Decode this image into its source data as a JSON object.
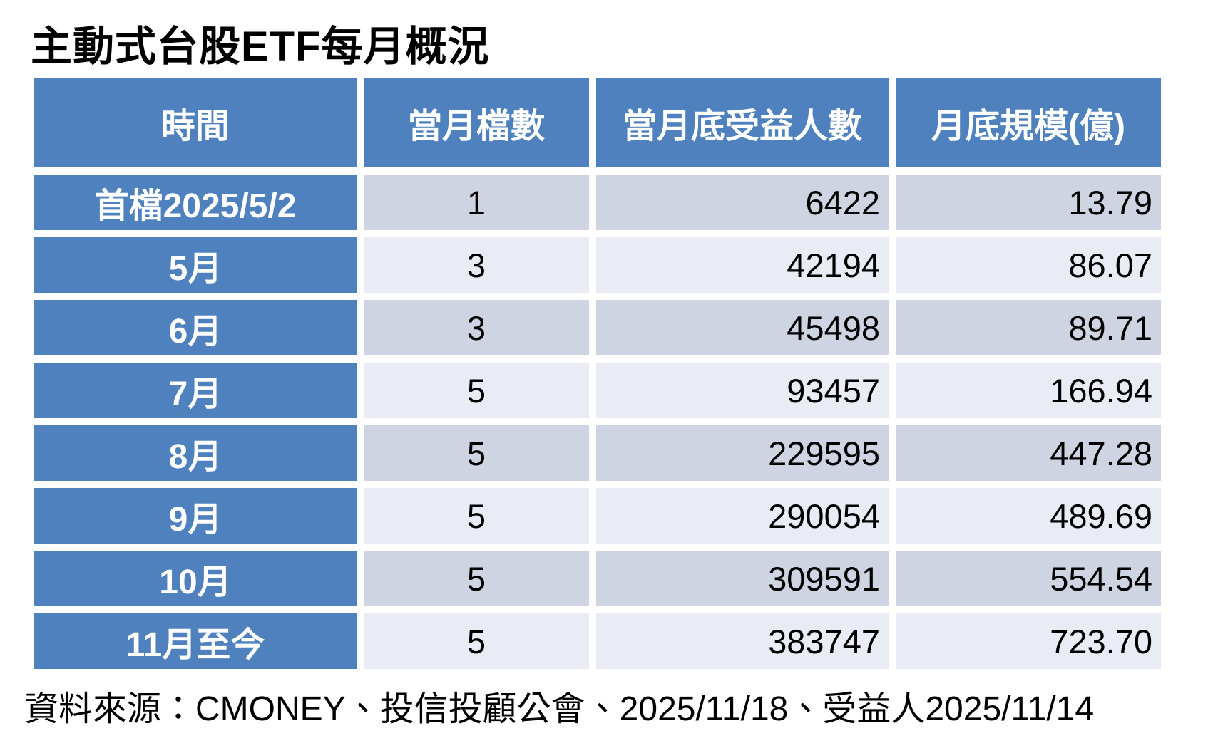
{
  "title": "主動式台股ETF每月概況",
  "source": "資料來源：CMONEY、投信投顧公會、2025/11/18、受益人2025/11/14",
  "colors": {
    "header_blue": "#4E81BD",
    "row_dark": "#CFD4E2",
    "row_light": "#E9ECF4",
    "header_text": "#FFFFFF",
    "body_text": "#000000",
    "background": "#FFFFFF"
  },
  "chart_data": {
    "type": "table",
    "title": "主動式台股ETF每月概況",
    "columns": [
      "時間",
      "當月檔數",
      "當月底受益人數",
      "月底規模(億)"
    ],
    "column_roles": [
      "time",
      "fund_count",
      "beneficiaries_end_of_month",
      "scale_end_of_month_100m"
    ],
    "rows": [
      [
        "首檔2025/5/2",
        "1",
        "6422",
        "13.79"
      ],
      [
        "5月",
        "3",
        "42194",
        "86.07"
      ],
      [
        "6月",
        "3",
        "45498",
        "89.71"
      ],
      [
        "7月",
        "5",
        "93457",
        "166.94"
      ],
      [
        "8月",
        "5",
        "229595",
        "447.28"
      ],
      [
        "9月",
        "5",
        "290054",
        "489.69"
      ],
      [
        "10月",
        "5",
        "309591",
        "554.54"
      ],
      [
        "11月至今",
        "5",
        "383747",
        "723.70"
      ]
    ],
    "layout_hints": {
      "row_shading": "alternating dark/light starting dark",
      "first_column_style": "blue header-style cells",
      "numeric_alignment": {
        "fund_count": "center",
        "beneficiaries": "right",
        "scale": "right"
      }
    }
  }
}
